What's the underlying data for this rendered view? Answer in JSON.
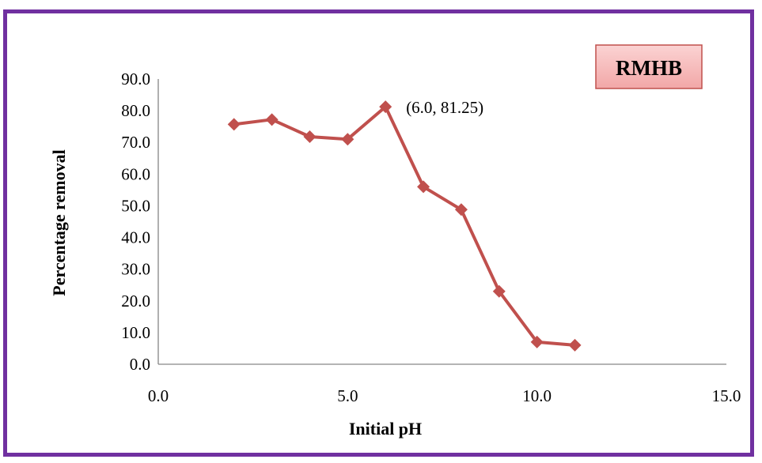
{
  "chart_data": {
    "type": "line",
    "title": "",
    "xlabel": "Initial pH",
    "ylabel": "Percentage removal",
    "xlim": [
      0,
      15
    ],
    "ylim": [
      0,
      90
    ],
    "x_ticks": [
      "0.0",
      "5.0",
      "10.0",
      "15.0"
    ],
    "y_ticks": [
      "0.0",
      "10.0",
      "20.0",
      "30.0",
      "40.0",
      "50.0",
      "60.0",
      "70.0",
      "80.0",
      "90.0"
    ],
    "grid": false,
    "series": [
      {
        "name": "",
        "color": "#c0504d",
        "marker": "diamond",
        "x": [
          2,
          3,
          4,
          5,
          6,
          7,
          8,
          9,
          10,
          11
        ],
        "y": [
          75.7,
          77.2,
          71.8,
          71.0,
          81.25,
          56.0,
          48.8,
          23.0,
          7.0,
          6.0
        ]
      }
    ],
    "annotations": [
      {
        "text": "(6.0, 81.25)",
        "x": 6.0,
        "y": 81.25
      }
    ],
    "badge": {
      "text": "RMHB",
      "fill": "#f4b6b6",
      "border": "#c0504d"
    }
  },
  "colors": {
    "frame": "#7030a0",
    "series": "#c0504d"
  }
}
